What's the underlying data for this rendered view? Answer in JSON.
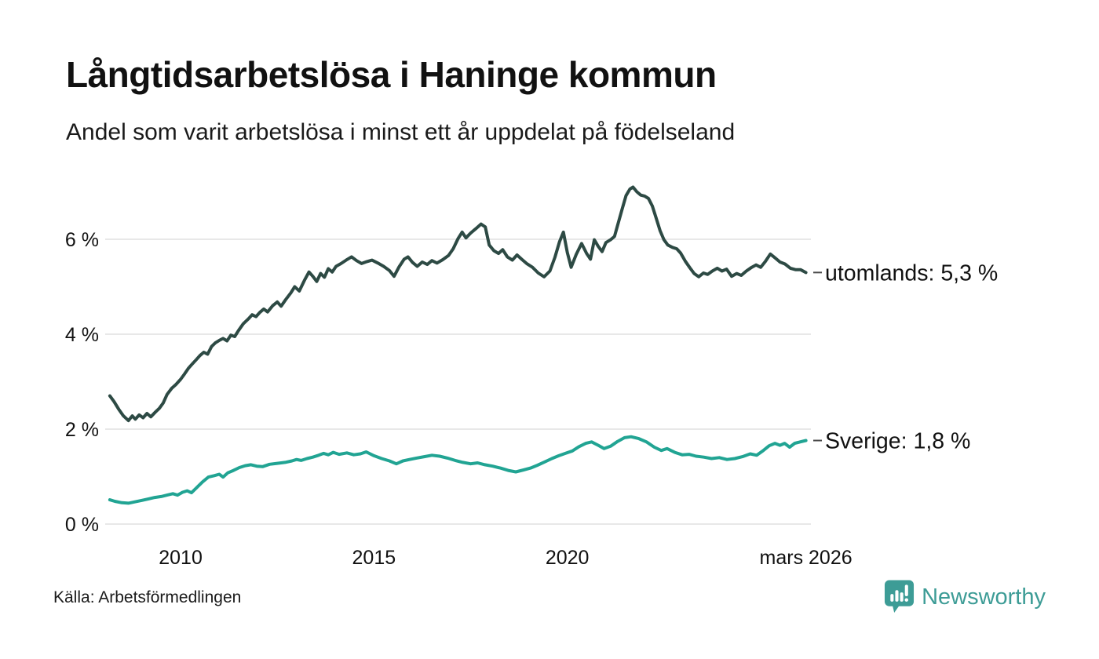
{
  "header": {
    "title": "Långtidsarbetslösa i Haninge kommun",
    "subtitle": "Andel som varit arbetslösa i minst ett år uppdelat på födelseland"
  },
  "source": {
    "label": "Källa: Arbetsförmedlingen"
  },
  "branding": {
    "name": "Newsworthy",
    "icon": "newsworthy-chart-bubble-icon",
    "color": "#3d9c96"
  },
  "chart_data": {
    "type": "line",
    "title": "Långtidsarbetslösa i Haninge kommun",
    "subtitle": "Andel som varit arbetslösa i minst ett år uppdelat på födelseland",
    "grid": true,
    "legend_position": "end-of-line-labels",
    "colors": {
      "gridline": "#e8e8e8",
      "tick_text": "#111111",
      "label_text": "#111111",
      "connector": "#4a4a4a"
    },
    "y_axis": {
      "unit": "%",
      "range": [
        0,
        7.6
      ],
      "ticks": [
        {
          "value": 0,
          "label": "0 %"
        },
        {
          "value": 2,
          "label": "2 %"
        },
        {
          "value": 4,
          "label": "4 %"
        },
        {
          "value": 6,
          "label": "6 %"
        }
      ]
    },
    "x_axis": {
      "range": [
        2008.05,
        2026.3
      ],
      "ticks": [
        {
          "year": 2010,
          "label": "2010"
        },
        {
          "year": 2015,
          "label": "2015"
        },
        {
          "year": 2020,
          "label": "2020"
        },
        {
          "year": 2026.17,
          "label": "mars 2026"
        }
      ]
    },
    "series": [
      {
        "name": "utomlands",
        "end_label": "utomlands: 5,3 %",
        "end_value": "5,3 %",
        "color": "#2d4a44",
        "points": [
          [
            2008.17,
            2.7
          ],
          [
            2008.28,
            2.58
          ],
          [
            2008.4,
            2.42
          ],
          [
            2008.52,
            2.28
          ],
          [
            2008.65,
            2.18
          ],
          [
            2008.75,
            2.28
          ],
          [
            2008.83,
            2.21
          ],
          [
            2008.93,
            2.3
          ],
          [
            2009.03,
            2.24
          ],
          [
            2009.13,
            2.33
          ],
          [
            2009.23,
            2.26
          ],
          [
            2009.35,
            2.36
          ],
          [
            2009.45,
            2.44
          ],
          [
            2009.55,
            2.55
          ],
          [
            2009.65,
            2.73
          ],
          [
            2009.77,
            2.86
          ],
          [
            2009.88,
            2.94
          ],
          [
            2010.0,
            3.05
          ],
          [
            2010.1,
            3.16
          ],
          [
            2010.2,
            3.28
          ],
          [
            2010.3,
            3.37
          ],
          [
            2010.4,
            3.46
          ],
          [
            2010.5,
            3.55
          ],
          [
            2010.6,
            3.62
          ],
          [
            2010.7,
            3.58
          ],
          [
            2010.8,
            3.74
          ],
          [
            2010.9,
            3.82
          ],
          [
            2011.0,
            3.87
          ],
          [
            2011.1,
            3.91
          ],
          [
            2011.2,
            3.86
          ],
          [
            2011.3,
            3.98
          ],
          [
            2011.4,
            3.95
          ],
          [
            2011.5,
            4.08
          ],
          [
            2011.62,
            4.22
          ],
          [
            2011.75,
            4.32
          ],
          [
            2011.85,
            4.41
          ],
          [
            2011.95,
            4.37
          ],
          [
            2012.05,
            4.46
          ],
          [
            2012.15,
            4.53
          ],
          [
            2012.25,
            4.47
          ],
          [
            2012.38,
            4.6
          ],
          [
            2012.5,
            4.68
          ],
          [
            2012.6,
            4.59
          ],
          [
            2012.72,
            4.73
          ],
          [
            2012.85,
            4.87
          ],
          [
            2012.95,
            5.0
          ],
          [
            2013.07,
            4.91
          ],
          [
            2013.2,
            5.13
          ],
          [
            2013.32,
            5.31
          ],
          [
            2013.42,
            5.22
          ],
          [
            2013.52,
            5.11
          ],
          [
            2013.62,
            5.28
          ],
          [
            2013.72,
            5.2
          ],
          [
            2013.82,
            5.38
          ],
          [
            2013.92,
            5.31
          ],
          [
            2014.02,
            5.43
          ],
          [
            2014.15,
            5.49
          ],
          [
            2014.28,
            5.56
          ],
          [
            2014.42,
            5.63
          ],
          [
            2014.55,
            5.55
          ],
          [
            2014.68,
            5.49
          ],
          [
            2014.82,
            5.53
          ],
          [
            2014.95,
            5.56
          ],
          [
            2015.1,
            5.5
          ],
          [
            2015.25,
            5.43
          ],
          [
            2015.4,
            5.34
          ],
          [
            2015.52,
            5.22
          ],
          [
            2015.65,
            5.42
          ],
          [
            2015.78,
            5.58
          ],
          [
            2015.88,
            5.63
          ],
          [
            2016.0,
            5.51
          ],
          [
            2016.12,
            5.43
          ],
          [
            2016.25,
            5.52
          ],
          [
            2016.38,
            5.47
          ],
          [
            2016.5,
            5.55
          ],
          [
            2016.63,
            5.5
          ],
          [
            2016.78,
            5.57
          ],
          [
            2016.93,
            5.66
          ],
          [
            2017.05,
            5.8
          ],
          [
            2017.18,
            6.02
          ],
          [
            2017.28,
            6.15
          ],
          [
            2017.38,
            6.03
          ],
          [
            2017.5,
            6.13
          ],
          [
            2017.63,
            6.22
          ],
          [
            2017.77,
            6.32
          ],
          [
            2017.88,
            6.26
          ],
          [
            2017.98,
            5.88
          ],
          [
            2018.1,
            5.76
          ],
          [
            2018.22,
            5.7
          ],
          [
            2018.33,
            5.78
          ],
          [
            2018.45,
            5.63
          ],
          [
            2018.58,
            5.56
          ],
          [
            2018.7,
            5.67
          ],
          [
            2018.82,
            5.58
          ],
          [
            2018.95,
            5.49
          ],
          [
            2019.1,
            5.41
          ],
          [
            2019.25,
            5.29
          ],
          [
            2019.4,
            5.21
          ],
          [
            2019.55,
            5.33
          ],
          [
            2019.68,
            5.62
          ],
          [
            2019.8,
            5.95
          ],
          [
            2019.9,
            6.15
          ],
          [
            2020.0,
            5.72
          ],
          [
            2020.1,
            5.41
          ],
          [
            2020.23,
            5.68
          ],
          [
            2020.37,
            5.91
          ],
          [
            2020.5,
            5.7
          ],
          [
            2020.6,
            5.58
          ],
          [
            2020.7,
            5.99
          ],
          [
            2020.8,
            5.85
          ],
          [
            2020.9,
            5.74
          ],
          [
            2021.0,
            5.93
          ],
          [
            2021.12,
            5.99
          ],
          [
            2021.22,
            6.06
          ],
          [
            2021.32,
            6.35
          ],
          [
            2021.42,
            6.64
          ],
          [
            2021.52,
            6.92
          ],
          [
            2021.62,
            7.06
          ],
          [
            2021.7,
            7.1
          ],
          [
            2021.8,
            7.0
          ],
          [
            2021.9,
            6.93
          ],
          [
            2022.0,
            6.91
          ],
          [
            2022.1,
            6.86
          ],
          [
            2022.2,
            6.7
          ],
          [
            2022.3,
            6.44
          ],
          [
            2022.4,
            6.18
          ],
          [
            2022.5,
            5.99
          ],
          [
            2022.6,
            5.88
          ],
          [
            2022.72,
            5.83
          ],
          [
            2022.83,
            5.8
          ],
          [
            2022.93,
            5.71
          ],
          [
            2023.05,
            5.54
          ],
          [
            2023.17,
            5.4
          ],
          [
            2023.28,
            5.28
          ],
          [
            2023.4,
            5.21
          ],
          [
            2023.52,
            5.29
          ],
          [
            2023.63,
            5.26
          ],
          [
            2023.75,
            5.33
          ],
          [
            2023.88,
            5.39
          ],
          [
            2024.0,
            5.33
          ],
          [
            2024.12,
            5.37
          ],
          [
            2024.25,
            5.22
          ],
          [
            2024.38,
            5.28
          ],
          [
            2024.5,
            5.24
          ],
          [
            2024.63,
            5.33
          ],
          [
            2024.77,
            5.41
          ],
          [
            2024.88,
            5.46
          ],
          [
            2025.0,
            5.41
          ],
          [
            2025.12,
            5.53
          ],
          [
            2025.25,
            5.69
          ],
          [
            2025.37,
            5.61
          ],
          [
            2025.5,
            5.52
          ],
          [
            2025.63,
            5.48
          ],
          [
            2025.77,
            5.39
          ],
          [
            2025.9,
            5.36
          ],
          [
            2026.03,
            5.36
          ],
          [
            2026.17,
            5.3
          ]
        ]
      },
      {
        "name": "Sverige",
        "end_label": "Sverige: 1,8 %",
        "end_value": "1,8 %",
        "color": "#21a493",
        "points": [
          [
            2008.17,
            0.51
          ],
          [
            2008.3,
            0.48
          ],
          [
            2008.48,
            0.45
          ],
          [
            2008.65,
            0.44
          ],
          [
            2008.83,
            0.47
          ],
          [
            2009.0,
            0.5
          ],
          [
            2009.17,
            0.53
          ],
          [
            2009.33,
            0.56
          ],
          [
            2009.5,
            0.58
          ],
          [
            2009.65,
            0.61
          ],
          [
            2009.8,
            0.64
          ],
          [
            2009.92,
            0.61
          ],
          [
            2010.05,
            0.67
          ],
          [
            2010.17,
            0.7
          ],
          [
            2010.28,
            0.66
          ],
          [
            2010.42,
            0.77
          ],
          [
            2010.57,
            0.89
          ],
          [
            2010.72,
            0.99
          ],
          [
            2010.87,
            1.02
          ],
          [
            2011.0,
            1.05
          ],
          [
            2011.1,
            0.99
          ],
          [
            2011.22,
            1.08
          ],
          [
            2011.37,
            1.13
          ],
          [
            2011.52,
            1.19
          ],
          [
            2011.67,
            1.23
          ],
          [
            2011.82,
            1.25
          ],
          [
            2011.97,
            1.22
          ],
          [
            2012.12,
            1.21
          ],
          [
            2012.3,
            1.26
          ],
          [
            2012.5,
            1.28
          ],
          [
            2012.7,
            1.3
          ],
          [
            2012.88,
            1.33
          ],
          [
            2013.0,
            1.36
          ],
          [
            2013.12,
            1.34
          ],
          [
            2013.27,
            1.38
          ],
          [
            2013.42,
            1.41
          ],
          [
            2013.57,
            1.45
          ],
          [
            2013.7,
            1.49
          ],
          [
            2013.82,
            1.46
          ],
          [
            2013.95,
            1.51
          ],
          [
            2014.1,
            1.47
          ],
          [
            2014.3,
            1.5
          ],
          [
            2014.48,
            1.46
          ],
          [
            2014.65,
            1.48
          ],
          [
            2014.8,
            1.52
          ],
          [
            2015.0,
            1.44
          ],
          [
            2015.2,
            1.38
          ],
          [
            2015.4,
            1.33
          ],
          [
            2015.58,
            1.27
          ],
          [
            2015.75,
            1.33
          ],
          [
            2015.92,
            1.36
          ],
          [
            2016.1,
            1.39
          ],
          [
            2016.3,
            1.42
          ],
          [
            2016.5,
            1.45
          ],
          [
            2016.7,
            1.43
          ],
          [
            2016.9,
            1.39
          ],
          [
            2017.1,
            1.34
          ],
          [
            2017.3,
            1.3
          ],
          [
            2017.5,
            1.27
          ],
          [
            2017.68,
            1.29
          ],
          [
            2017.87,
            1.25
          ],
          [
            2018.07,
            1.22
          ],
          [
            2018.27,
            1.18
          ],
          [
            2018.47,
            1.13
          ],
          [
            2018.67,
            1.1
          ],
          [
            2018.87,
            1.14
          ],
          [
            2019.05,
            1.18
          ],
          [
            2019.23,
            1.24
          ],
          [
            2019.42,
            1.31
          ],
          [
            2019.6,
            1.38
          ],
          [
            2019.78,
            1.44
          ],
          [
            2019.95,
            1.49
          ],
          [
            2020.13,
            1.54
          ],
          [
            2020.3,
            1.63
          ],
          [
            2020.48,
            1.7
          ],
          [
            2020.63,
            1.73
          ],
          [
            2020.8,
            1.66
          ],
          [
            2020.95,
            1.59
          ],
          [
            2021.12,
            1.64
          ],
          [
            2021.3,
            1.74
          ],
          [
            2021.48,
            1.82
          ],
          [
            2021.65,
            1.84
          ],
          [
            2021.85,
            1.8
          ],
          [
            2022.05,
            1.73
          ],
          [
            2022.25,
            1.62
          ],
          [
            2022.43,
            1.55
          ],
          [
            2022.58,
            1.59
          ],
          [
            2022.78,
            1.51
          ],
          [
            2022.97,
            1.46
          ],
          [
            2023.15,
            1.47
          ],
          [
            2023.33,
            1.43
          ],
          [
            2023.53,
            1.41
          ],
          [
            2023.73,
            1.38
          ],
          [
            2023.93,
            1.4
          ],
          [
            2024.13,
            1.36
          ],
          [
            2024.33,
            1.38
          ],
          [
            2024.53,
            1.42
          ],
          [
            2024.73,
            1.48
          ],
          [
            2024.9,
            1.45
          ],
          [
            2025.07,
            1.55
          ],
          [
            2025.22,
            1.65
          ],
          [
            2025.37,
            1.7
          ],
          [
            2025.5,
            1.66
          ],
          [
            2025.62,
            1.7
          ],
          [
            2025.75,
            1.62
          ],
          [
            2025.88,
            1.7
          ],
          [
            2026.02,
            1.73
          ],
          [
            2026.17,
            1.76
          ]
        ]
      }
    ]
  }
}
